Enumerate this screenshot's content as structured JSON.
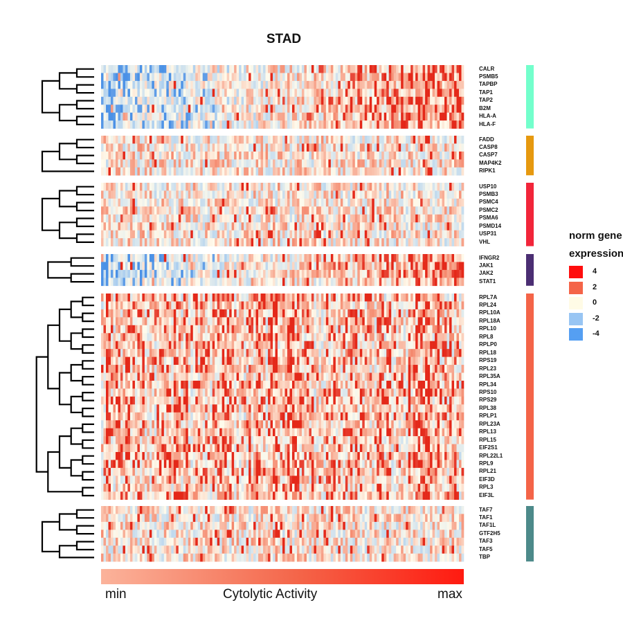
{
  "chart_data": {
    "type": "heatmap",
    "title": "STAD",
    "x_axis": {
      "label": "Cytolytic Activity",
      "min_label": "min",
      "max_label": "max"
    },
    "legend": {
      "title": [
        "norm gene",
        "expression"
      ],
      "entries": [
        {
          "label": "4",
          "color": "#ff0d0d"
        },
        {
          "label": "2",
          "color": "#f46448"
        },
        {
          "label": "0",
          "color": "#fffbe6"
        },
        {
          "label": "-2",
          "color": "#98c5f3"
        },
        {
          "label": "-4",
          "color": "#559ff2"
        }
      ]
    },
    "gene_groups": [
      {
        "color": "#73ffcc",
        "genes": [
          "CALR",
          "PSMB5",
          "TAPBP",
          "TAP1",
          "TAP2",
          "B2M",
          "HLA-A",
          "HLA-F"
        ]
      },
      {
        "color": "#e6990f",
        "genes": [
          "FADD",
          "CASP8",
          "CASP7",
          "MAP4K2",
          "RIPK1"
        ]
      },
      {
        "color": "#f2253a",
        "genes": [
          "USP10",
          "PSMB3",
          "PSMC4",
          "PSMC2",
          "PSMA6",
          "PSMD14",
          "USP31",
          "VHL"
        ]
      },
      {
        "color": "#4b2e73",
        "genes": [
          "IFNGR2",
          "JAK1",
          "JAK2",
          "STAT1"
        ]
      },
      {
        "color": "#f46448",
        "genes": [
          "RPL7A",
          "RPL24",
          "RPL10A",
          "RPL18A",
          "RPL10",
          "RPL8",
          "RPLP0",
          "RPL18",
          "RPS19",
          "RPL23",
          "RPL35A",
          "RPL34",
          "RPS10",
          "RPS29",
          "RPL38",
          "RPLP1",
          "RPL23A",
          "RPL13",
          "RPL15",
          "EIF2S1",
          "RPL22L1",
          "RPL9",
          "RPL21",
          "EIF3D",
          "RPL3",
          "EIF3L"
        ]
      },
      {
        "color": "#4d8a8a",
        "genes": [
          "TAF7",
          "TAF1",
          "TAF1L",
          "GTF2H5",
          "TAF3",
          "TAF5",
          "TBP"
        ]
      }
    ]
  }
}
